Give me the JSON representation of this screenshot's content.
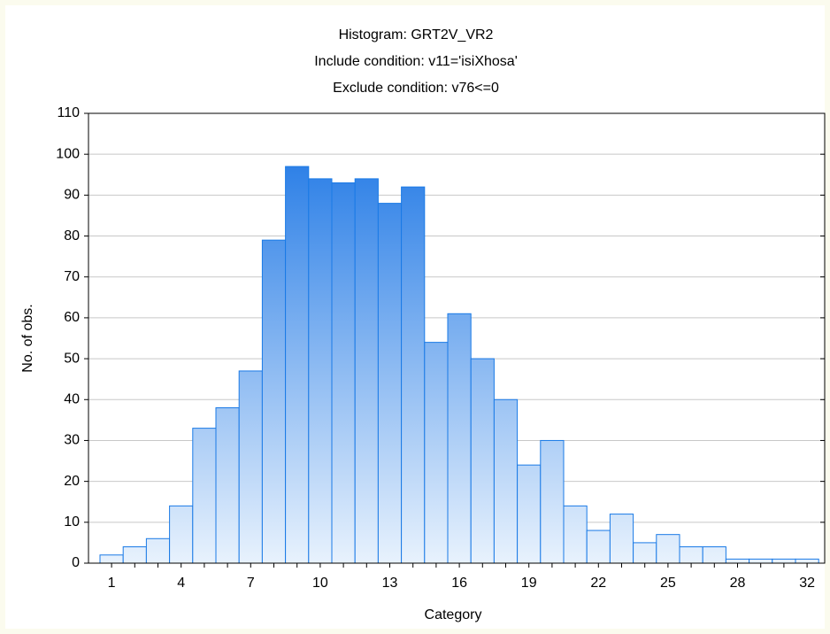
{
  "chart_data": {
    "type": "bar",
    "title": "Histogram: GRT2V_VR2",
    "subtitles": [
      "Include condition: v11='isiXhosa'",
      "Exclude condition: v76<=0"
    ],
    "xlabel": "Category",
    "ylabel": "No. of obs.",
    "categories": [
      "1",
      null,
      null,
      "4",
      null,
      null,
      "7",
      null,
      null,
      "10",
      null,
      null,
      "13",
      null,
      null,
      "16",
      null,
      null,
      "19",
      null,
      null,
      "22",
      null,
      null,
      "25",
      null,
      null,
      "28",
      null,
      null,
      "32"
    ],
    "values": [
      2,
      4,
      6,
      14,
      33,
      38,
      47,
      79,
      97,
      94,
      93,
      94,
      88,
      92,
      54,
      61,
      50,
      40,
      24,
      30,
      14,
      8,
      12,
      5,
      7,
      4,
      4,
      1,
      1,
      1,
      1
    ],
    "color": "#1a7ae6",
    "ylim": [
      0,
      110
    ],
    "yticks": [
      0,
      10,
      20,
      30,
      40,
      50,
      60,
      70,
      80,
      90,
      100,
      110
    ],
    "grid": true
  }
}
